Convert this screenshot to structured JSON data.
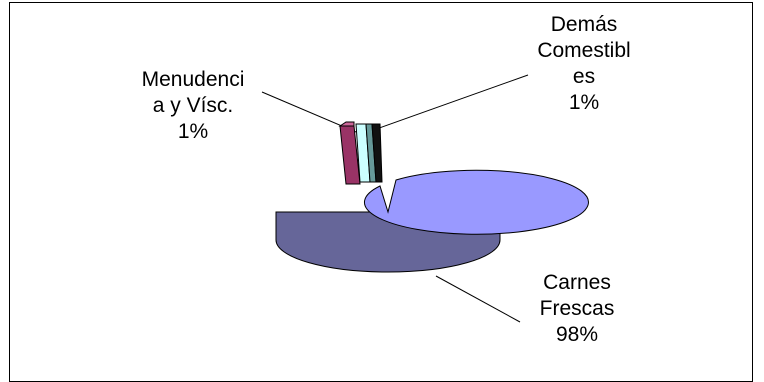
{
  "chart_data": {
    "type": "pie",
    "style": "3d-exploded",
    "slices": [
      {
        "label": "Carnes Frescas",
        "percent_label": "98%",
        "value": 98,
        "color": "#9999ff"
      },
      {
        "label": "Menudencia y Vísc.",
        "percent_label": "1%",
        "value": 1,
        "color": "#993366"
      },
      {
        "label": "Demás Comestibles",
        "percent_label": "1%",
        "value": 1,
        "color": "#ccffff"
      }
    ],
    "label_text": {
      "carnes": "Carnes\nFrescas\n98%",
      "menudencia": "Menudenci\na y Vísc.\n1%",
      "demas": "Demás\nComestibl\nes\n1%"
    },
    "legend": "none"
  }
}
